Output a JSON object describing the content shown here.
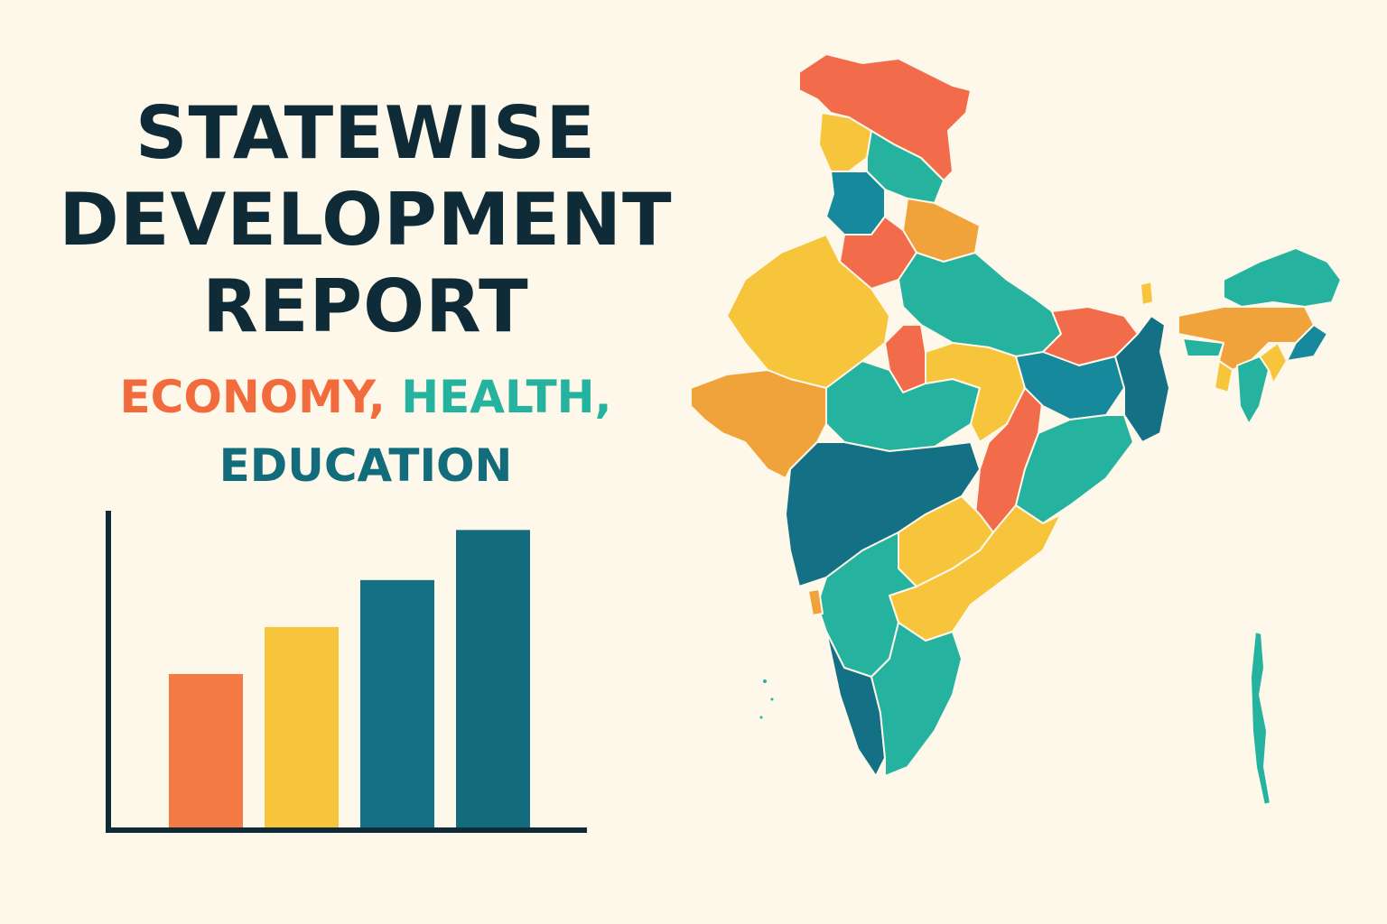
{
  "title": {
    "lines": [
      "STATEWISE",
      "DEVELOPMENT",
      "REPORT"
    ]
  },
  "subtitle": {
    "words": [
      {
        "text": "ECONOMY,",
        "color": "#f26b3c"
      },
      {
        "text": "HEALTH,",
        "color": "#25b3a0"
      },
      {
        "text": "EDUCATION",
        "color": "#136c7c"
      }
    ]
  },
  "chart_data": {
    "type": "bar",
    "values": [
      0.49,
      0.64,
      0.79,
      0.95
    ],
    "colors": [
      "#f47a43",
      "#f7c53c",
      "#137085",
      "#136c7c"
    ],
    "ylim": [
      0,
      1
    ]
  },
  "map": {
    "region_colors": [
      "#f26b4a",
      "#f7c53c",
      "#25b3a0",
      "#168a9c",
      "#f0a33a",
      "#137085"
    ]
  }
}
